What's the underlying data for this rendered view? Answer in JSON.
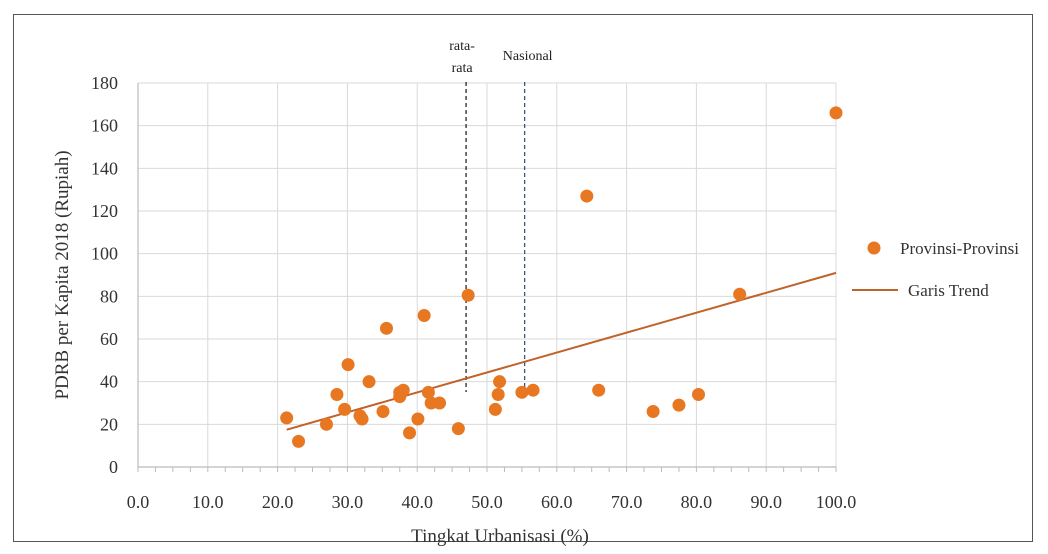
{
  "chart_data": {
    "type": "scatter",
    "title": "",
    "xlabel": "Tingkat Urbanisasi (%)",
    "ylabel": "PDRB per Kapita 2018 (Rupiah)",
    "xlim": [
      0,
      100
    ],
    "ylim": [
      0,
      180
    ],
    "x_ticks": [
      "0.0",
      "10.0",
      "20.0",
      "30.0",
      "40.0",
      "50.0",
      "60.0",
      "70.0",
      "80.0",
      "90.0",
      "100.0"
    ],
    "y_ticks": [
      "0",
      "20",
      "40",
      "60",
      "80",
      "100",
      "120",
      "140",
      "160",
      "180"
    ],
    "grid": true,
    "legend_position": "right",
    "series": [
      {
        "name": "Provinsi-Provinsi",
        "color": "#E87722",
        "points": [
          [
            21.3,
            23
          ],
          [
            23.0,
            12
          ],
          [
            27.0,
            20
          ],
          [
            28.5,
            34
          ],
          [
            29.6,
            27
          ],
          [
            30.1,
            48
          ],
          [
            31.8,
            24
          ],
          [
            32.1,
            22.5
          ],
          [
            33.1,
            40
          ],
          [
            35.1,
            26
          ],
          [
            35.6,
            65
          ],
          [
            37.5,
            33
          ],
          [
            37.5,
            35
          ],
          [
            38.0,
            36
          ],
          [
            38.9,
            16
          ],
          [
            40.1,
            22.5
          ],
          [
            41.0,
            71
          ],
          [
            41.6,
            35
          ],
          [
            42.0,
            30
          ],
          [
            43.2,
            30
          ],
          [
            45.9,
            18
          ],
          [
            47.3,
            80.5
          ],
          [
            51.2,
            27
          ],
          [
            51.6,
            34
          ],
          [
            51.8,
            40
          ],
          [
            55.0,
            35
          ],
          [
            56.6,
            36
          ],
          [
            64.3,
            127
          ],
          [
            66.0,
            36
          ],
          [
            73.8,
            26
          ],
          [
            77.5,
            29
          ],
          [
            80.3,
            34
          ],
          [
            86.2,
            81
          ],
          [
            100.0,
            166
          ]
        ]
      },
      {
        "name": "Garis Trend",
        "color": "#C0622A",
        "type": "line",
        "points": [
          [
            21.3,
            17.5
          ],
          [
            100.0,
            91
          ]
        ]
      }
    ],
    "reference_lines": [
      {
        "label": "rata-\nrata",
        "label_line1": "rata-",
        "label_line2": "rata",
        "x": 47.0,
        "color": "#000000",
        "style": "dashed"
      },
      {
        "label": "Nasional",
        "x": 55.4,
        "color": "#1F3A6E",
        "style": "dashed"
      }
    ]
  }
}
